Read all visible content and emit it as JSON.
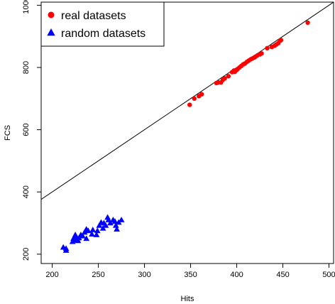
{
  "chart_data": {
    "type": "scatter",
    "xlabel": "Hits",
    "ylabel": "FCS",
    "xlim": [
      188,
      505
    ],
    "ylim": [
      170,
      1010
    ],
    "x_ticks": [
      200,
      250,
      300,
      350,
      400,
      450,
      500
    ],
    "y_ticks": [
      200,
      400,
      600,
      800,
      1000
    ],
    "reference_line": {
      "slope": 2,
      "intercept": 0
    },
    "legend": {
      "position": "top-left"
    },
    "series": [
      {
        "name": "real datasets",
        "color": "#ff0000",
        "marker": "circle",
        "points": [
          [
            349,
            680
          ],
          [
            354,
            700
          ],
          [
            359,
            708
          ],
          [
            362,
            714
          ],
          [
            378,
            750
          ],
          [
            380,
            752
          ],
          [
            383,
            752
          ],
          [
            385,
            760
          ],
          [
            387,
            765
          ],
          [
            391,
            772
          ],
          [
            395,
            785
          ],
          [
            397,
            790
          ],
          [
            398,
            786
          ],
          [
            400,
            792
          ],
          [
            401,
            795
          ],
          [
            403,
            800
          ],
          [
            405,
            805
          ],
          [
            407,
            810
          ],
          [
            409,
            813
          ],
          [
            411,
            818
          ],
          [
            413,
            822
          ],
          [
            415,
            826
          ],
          [
            417,
            829
          ],
          [
            419,
            832
          ],
          [
            420,
            834
          ],
          [
            422,
            838
          ],
          [
            425,
            842
          ],
          [
            427,
            845
          ],
          [
            433,
            862
          ],
          [
            438,
            866
          ],
          [
            441,
            870
          ],
          [
            443,
            874
          ],
          [
            445,
            878
          ],
          [
            447,
            886
          ],
          [
            448,
            888
          ],
          [
            477,
            944
          ]
        ]
      },
      {
        "name": "random datasets",
        "color": "#0000ff",
        "marker": "triangle",
        "points": [
          [
            212,
            222
          ],
          [
            215,
            212
          ],
          [
            215,
            218
          ],
          [
            222,
            240
          ],
          [
            223,
            250
          ],
          [
            224,
            245
          ],
          [
            225,
            262
          ],
          [
            226,
            255
          ],
          [
            227,
            248
          ],
          [
            228,
            243
          ],
          [
            229,
            252
          ],
          [
            231,
            262
          ],
          [
            233,
            258
          ],
          [
            235,
            270
          ],
          [
            237,
            280
          ],
          [
            237,
            250
          ],
          [
            239,
            275
          ],
          [
            243,
            264
          ],
          [
            244,
            278
          ],
          [
            248,
            262
          ],
          [
            249,
            275
          ],
          [
            251,
            292
          ],
          [
            253,
            302
          ],
          [
            255,
            283
          ],
          [
            256,
            300
          ],
          [
            258,
            292
          ],
          [
            260,
            318
          ],
          [
            261,
            310
          ],
          [
            263,
            300
          ],
          [
            266,
            310
          ],
          [
            268,
            305
          ],
          [
            269,
            292
          ],
          [
            270,
            280
          ],
          [
            272,
            302
          ],
          [
            275,
            310
          ]
        ]
      }
    ]
  }
}
